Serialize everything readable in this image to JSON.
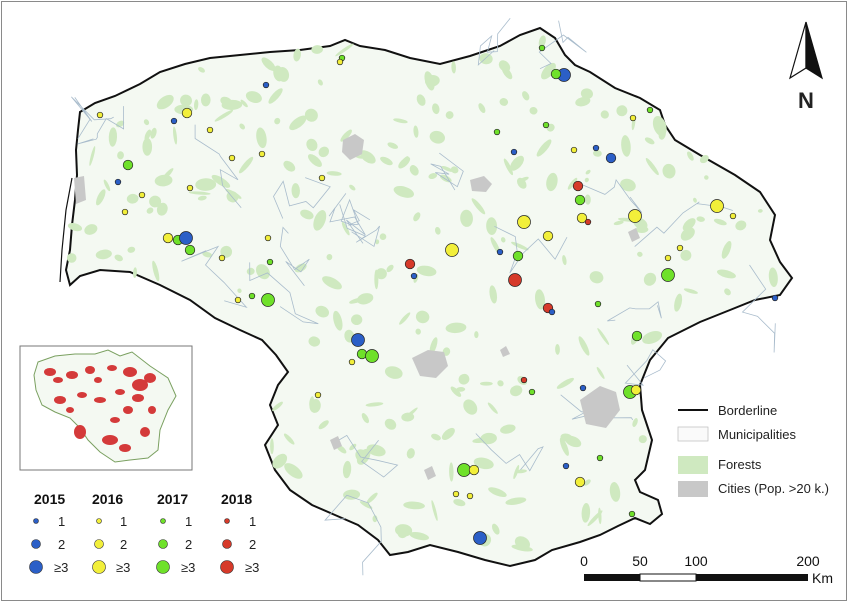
{
  "north": {
    "label": "N"
  },
  "legend": {
    "items": [
      {
        "key": "border",
        "label": "Borderline"
      },
      {
        "key": "muni",
        "label": "Municipalities"
      },
      {
        "key": "forest",
        "label": "Forests"
      },
      {
        "key": "city",
        "label": "Cities (Pop. >20 k.)"
      }
    ]
  },
  "years": [
    {
      "label": "2015",
      "color": "#2b5fc7"
    },
    {
      "label": "2016",
      "color": "#f2ef3a"
    },
    {
      "label": "2017",
      "color": "#6fe12a"
    },
    {
      "label": "2018",
      "color": "#d63a2a"
    }
  ],
  "size_labels": [
    "1",
    "2",
    "≥3"
  ],
  "scale": {
    "ticks": [
      "0",
      "50",
      "100",
      "200"
    ],
    "unit": "Km"
  },
  "colors": {
    "forest": "#cfe9c0",
    "city": "#c8c8c8",
    "border": "#111111",
    "muni": "#a9bccc"
  }
}
